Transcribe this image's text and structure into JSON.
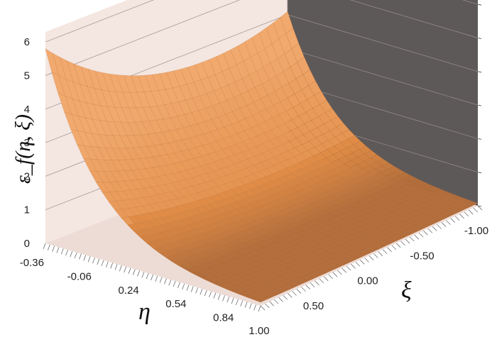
{
  "chart_data": {
    "type": "surface",
    "zlabel": "ε_f(η, ξ)",
    "xlabel": "η",
    "ylabel": "ξ",
    "eta_ticks": [
      "-0.36",
      "-0.06",
      "0.24",
      "0.54",
      "0.84"
    ],
    "xi_ticks": [
      "-1.00",
      "-0.50",
      "0.00",
      "0.50",
      "1.00"
    ],
    "z_ticks": [
      "0",
      "1",
      "2",
      "3",
      "4",
      "5",
      "6"
    ],
    "eta_range": [
      -0.36,
      1.0
    ],
    "xi_range": [
      -1.0,
      1.0
    ],
    "z_range": [
      0,
      6
    ],
    "surface_samples": [
      {
        "eta": -0.36,
        "xi": 1.0,
        "z": 5.8
      },
      {
        "eta": -0.36,
        "xi": -0.3,
        "z": 3.4
      },
      {
        "eta": -0.36,
        "xi": -1.0,
        "z": 4.1
      },
      {
        "eta": 0.24,
        "xi": -1.0,
        "z": 1.5
      },
      {
        "eta": 0.54,
        "xi": -1.0,
        "z": 0.5
      },
      {
        "eta": 1.0,
        "xi": -1.0,
        "z": 0.2
      },
      {
        "eta": 1.0,
        "xi": 1.0,
        "z": 0.05
      }
    ],
    "grid": true,
    "colors": {
      "surface_light": "#f5b078",
      "surface_mid": "#e08c46",
      "surface_dark": "#a9683a",
      "mesh": "#b86a2c",
      "back_wall": "#f4e6e0",
      "side_wall": "#5e5959",
      "floor": "#eddcd6"
    }
  }
}
